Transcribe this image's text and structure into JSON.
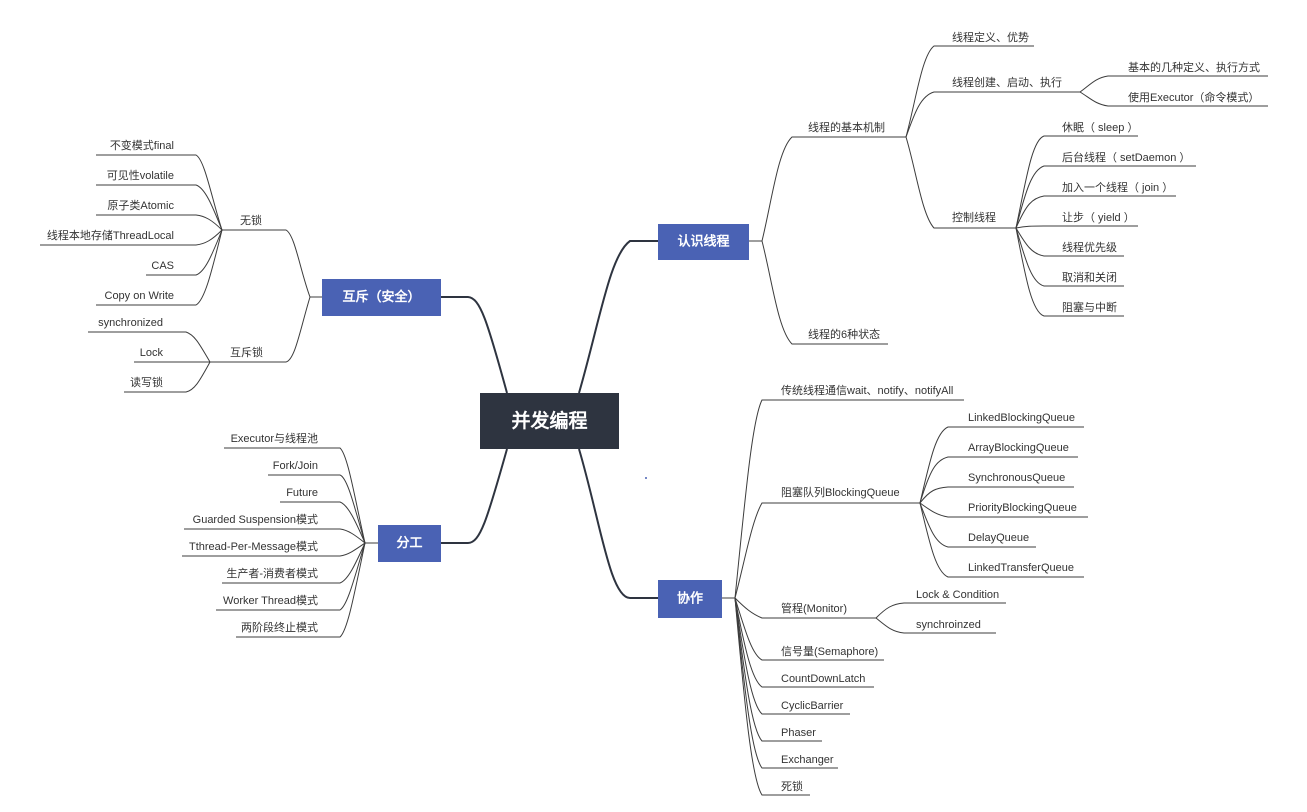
{
  "colors": {
    "root": "#2e3440",
    "branch": "#4a62b4",
    "line": "#3c3c3c",
    "text": "#333333"
  },
  "root": "并发编程",
  "branches": {
    "renshi": "认识线程",
    "huchi": "互斥（安全）",
    "fengong": "分工",
    "xiezuo": "协作"
  },
  "renshi": {
    "jizhi": "线程的基本机制",
    "dingyi": "线程定义、优势",
    "chuangjian": "线程创建、启动、执行",
    "jiben": "基本的几种定义、执行方式",
    "executor": "使用Executor（命令模式）",
    "kongzhi": "控制线程",
    "sleep": "休眠（ sleep ）",
    "daemon": "后台线程（ setDaemon ）",
    "join": "加入一个线程（ join ）",
    "yield": "让步（ yield ）",
    "priority": "线程优先级",
    "cancel": "取消和关闭",
    "interrupt": "阻塞与中断",
    "states": "线程的6种状态"
  },
  "huchi": {
    "wusuo": "无锁",
    "final": "不变模式final",
    "volatile": "可见性volatile",
    "atomic": "原子类Atomic",
    "threadlocal": "线程本地存储ThreadLocal",
    "cas": "CAS",
    "cow": "Copy on Write",
    "husuo": "互斥锁",
    "synchronized": "synchronized",
    "lock": "Lock",
    "rwlock": "读写锁"
  },
  "fengong": {
    "pool": "Executor与线程池",
    "forkjoin": "Fork/Join",
    "future": "Future",
    "guarded": "Guarded Suspension模式",
    "tpm": "Tthread-Per-Message模式",
    "pc": "生产者-消费者模式",
    "worker": "Worker Thread模式",
    "twophase": "两阶段终止模式"
  },
  "xiezuo": {
    "wait": "传统线程通信wait、notify、notifyAll",
    "bq": "阻塞队列BlockingQueue",
    "lbq": "LinkedBlockingQueue",
    "abq": "ArrayBlockingQueue",
    "sq": "SynchronousQueue",
    "pbq": "PriorityBlockingQueue",
    "dq": "DelayQueue",
    "ltq": "LinkedTransferQueue",
    "monitor": "管程(Monitor)",
    "lockcond": "Lock & Condition",
    "sync2": "synchroinzed",
    "semaphore": "信号量(Semaphore)",
    "cdl": "CountDownLatch",
    "cb": "CyclicBarrier",
    "phaser": "Phaser",
    "exchanger": "Exchanger",
    "deadlock": "死锁"
  }
}
